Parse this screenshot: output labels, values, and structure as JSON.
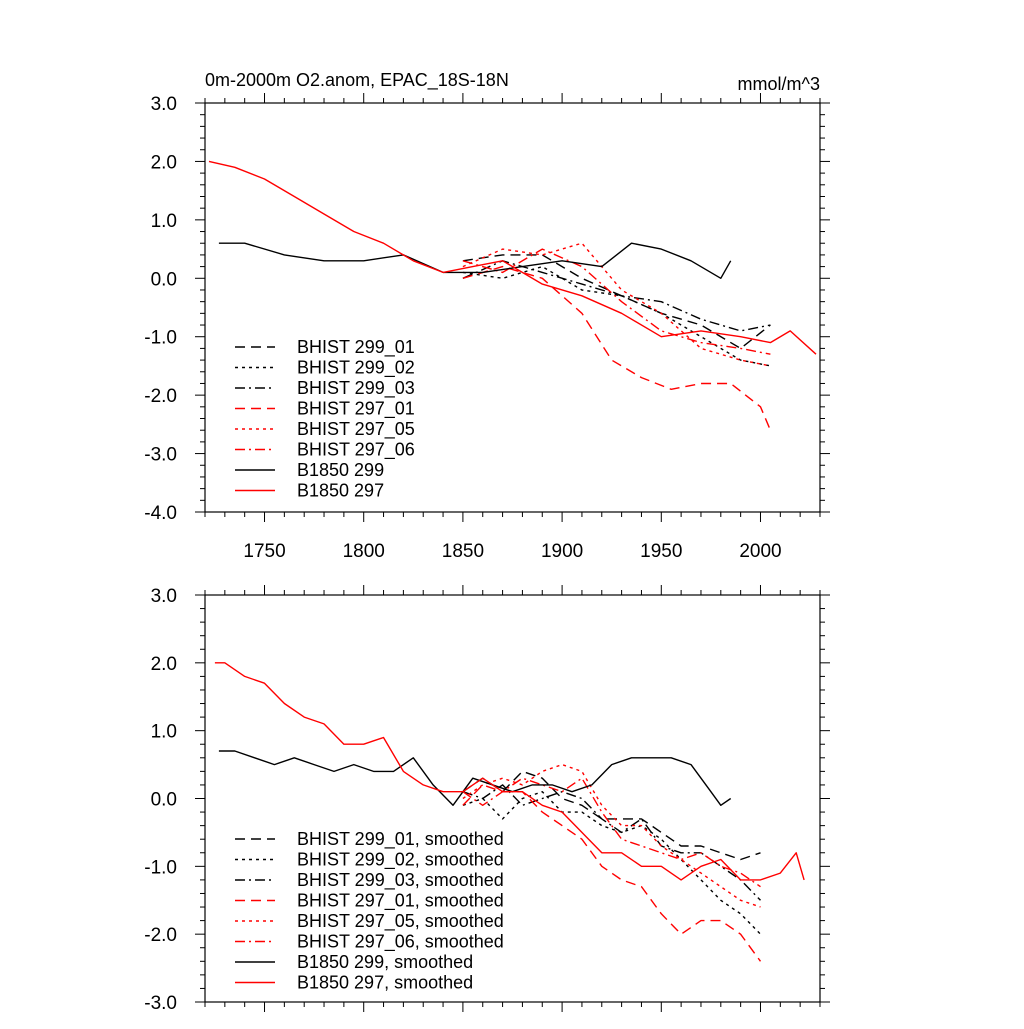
{
  "chart_data": [
    {
      "type": "line",
      "title": "0m-2000m O2.anom, EPAC_18S-18N",
      "units": "mmol/m^3",
      "xlim": [
        1720,
        2030
      ],
      "ylim": [
        -4.0,
        3.0
      ],
      "xticks": [
        1750,
        1800,
        1850,
        1900,
        1950,
        2000
      ],
      "xtick_labels": [
        "1750",
        "1800",
        "1850",
        "1900",
        "1950",
        "2000"
      ],
      "yticks": [
        3.0,
        2.0,
        1.0,
        0.0,
        -1.0,
        -2.0,
        -3.0,
        -4.0
      ],
      "ytick_labels": [
        "3.0",
        "2.0",
        "1.0",
        "0.0",
        "-1.0",
        "-2.0",
        "-3.0",
        "-4.0"
      ],
      "legend_position": "bottom-left",
      "series": [
        {
          "name": "BHIST 299_01",
          "color": "#000000",
          "dash": "dashed",
          "x": [
            1850,
            1870,
            1890,
            1910,
            1930,
            1950,
            1970,
            1990,
            2005
          ],
          "y": [
            0.3,
            0.4,
            0.4,
            0.0,
            -0.3,
            -0.6,
            -0.8,
            -1.2,
            -0.8
          ]
        },
        {
          "name": "BHIST 299_02",
          "color": "#000000",
          "dash": "dotted",
          "x": [
            1850,
            1870,
            1890,
            1910,
            1930,
            1950,
            1970,
            1990,
            2005
          ],
          "y": [
            0.1,
            0.0,
            0.2,
            -0.2,
            -0.3,
            -0.6,
            -1.0,
            -1.4,
            -1.5
          ]
        },
        {
          "name": "BHIST 299_03",
          "color": "#000000",
          "dash": "dashdot",
          "x": [
            1850,
            1870,
            1890,
            1910,
            1930,
            1950,
            1970,
            1990,
            2005
          ],
          "y": [
            0.0,
            0.3,
            0.1,
            -0.1,
            -0.3,
            -0.4,
            -0.7,
            -0.9,
            -0.8
          ]
        },
        {
          "name": "BHIST 297_01",
          "color": "#ff0000",
          "dash": "dashed",
          "x": [
            1850,
            1870,
            1890,
            1910,
            1925,
            1940,
            1955,
            1970,
            1985,
            2000,
            2005
          ],
          "y": [
            0.0,
            0.2,
            0.0,
            -0.6,
            -1.4,
            -1.7,
            -1.9,
            -1.8,
            -1.8,
            -2.2,
            -2.6
          ]
        },
        {
          "name": "BHIST 297_05",
          "color": "#ff0000",
          "dash": "dotted",
          "x": [
            1850,
            1870,
            1890,
            1910,
            1930,
            1950,
            1970,
            1990,
            2005
          ],
          "y": [
            0.2,
            0.5,
            0.4,
            0.6,
            -0.2,
            -0.6,
            -1.2,
            -1.4,
            -1.5
          ]
        },
        {
          "name": "BHIST 297_06",
          "color": "#ff0000",
          "dash": "dashdot",
          "x": [
            1850,
            1870,
            1890,
            1910,
            1930,
            1950,
            1970,
            1990,
            2005
          ],
          "y": [
            0.3,
            0.1,
            0.5,
            0.2,
            -0.4,
            -0.9,
            -1.1,
            -1.2,
            -1.3
          ]
        },
        {
          "name": "B1850 299",
          "color": "#000000",
          "dash": "solid",
          "x": [
            1727,
            1740,
            1760,
            1780,
            1800,
            1820,
            1840,
            1860,
            1880,
            1900,
            1920,
            1935,
            1950,
            1965,
            1980,
            1985
          ],
          "y": [
            0.6,
            0.6,
            0.4,
            0.3,
            0.3,
            0.4,
            0.1,
            0.1,
            0.2,
            0.3,
            0.2,
            0.6,
            0.5,
            0.3,
            0.0,
            0.3
          ]
        },
        {
          "name": "B1850 297",
          "color": "#ff0000",
          "dash": "solid",
          "x": [
            1722,
            1735,
            1750,
            1765,
            1780,
            1795,
            1810,
            1825,
            1840,
            1855,
            1870,
            1890,
            1910,
            1930,
            1950,
            1970,
            1990,
            2005,
            2015,
            2028
          ],
          "y": [
            2.0,
            1.9,
            1.7,
            1.4,
            1.1,
            0.8,
            0.6,
            0.3,
            0.1,
            0.2,
            0.3,
            -0.1,
            -0.3,
            -0.6,
            -1.0,
            -0.9,
            -1.0,
            -1.1,
            -0.9,
            -1.3
          ]
        }
      ]
    },
    {
      "type": "line",
      "title": "",
      "xlim": [
        1720,
        2030
      ],
      "ylim": [
        -3.0,
        3.0
      ],
      "xticks": [
        1750,
        1800,
        1850,
        1900,
        1950,
        2000
      ],
      "yticks": [
        3.0,
        2.0,
        1.0,
        0.0,
        -1.0,
        -2.0,
        -3.0
      ],
      "ytick_labels": [
        "3.0",
        "2.0",
        "1.0",
        "0.0",
        "-1.0",
        "-2.0",
        "-3.0"
      ],
      "legend_position": "bottom-left",
      "series": [
        {
          "name": "BHIST 299_01, smoothed",
          "color": "#000000",
          "dash": "dashed",
          "x": [
            1850,
            1860,
            1870,
            1880,
            1890,
            1900,
            1910,
            1920,
            1930,
            1940,
            1950,
            1960,
            1970,
            1980,
            1990,
            2000
          ],
          "y": [
            0.1,
            0.3,
            0.1,
            0.4,
            0.3,
            0.0,
            -0.1,
            -0.3,
            -0.3,
            -0.3,
            -0.5,
            -0.7,
            -0.7,
            -0.8,
            -0.9,
            -0.8
          ]
        },
        {
          "name": "BHIST 299_02, smoothed",
          "color": "#000000",
          "dash": "dotted",
          "x": [
            1850,
            1860,
            1870,
            1880,
            1890,
            1900,
            1910,
            1920,
            1930,
            1940,
            1950,
            1960,
            1970,
            1980,
            1990,
            2000
          ],
          "y": [
            -0.1,
            0.0,
            -0.3,
            0.0,
            0.1,
            -0.2,
            -0.2,
            -0.4,
            -0.5,
            -0.4,
            -0.6,
            -0.9,
            -1.2,
            -1.5,
            -1.7,
            -2.0
          ]
        },
        {
          "name": "BHIST 299_03, smoothed",
          "color": "#000000",
          "dash": "dashdot",
          "x": [
            1850,
            1860,
            1870,
            1880,
            1890,
            1900,
            1910,
            1920,
            1930,
            1940,
            1950,
            1960,
            1970,
            1980,
            1990,
            2000
          ],
          "y": [
            0.1,
            0.0,
            0.2,
            -0.1,
            0.0,
            0.1,
            0.0,
            -0.3,
            -0.5,
            -0.3,
            -0.7,
            -0.8,
            -0.8,
            -1.0,
            -1.2,
            -1.5
          ]
        },
        {
          "name": "BHIST 297_01, smoothed",
          "color": "#ff0000",
          "dash": "dashed",
          "x": [
            1850,
            1860,
            1870,
            1880,
            1890,
            1900,
            1910,
            1920,
            1930,
            1940,
            1950,
            1960,
            1970,
            1980,
            1990,
            2000
          ],
          "y": [
            -0.1,
            0.2,
            0.1,
            0.1,
            -0.2,
            -0.4,
            -0.6,
            -1.0,
            -1.2,
            -1.3,
            -1.7,
            -2.0,
            -1.8,
            -1.8,
            -2.0,
            -2.4
          ]
        },
        {
          "name": "BHIST 297_05, smoothed",
          "color": "#ff0000",
          "dash": "dotted",
          "x": [
            1850,
            1860,
            1870,
            1880,
            1890,
            1900,
            1910,
            1920,
            1930,
            1940,
            1950,
            1960,
            1970,
            1980,
            1990,
            2000
          ],
          "y": [
            0.0,
            0.2,
            0.3,
            0.2,
            0.4,
            0.5,
            0.4,
            -0.1,
            -0.4,
            -0.4,
            -0.7,
            -0.9,
            -1.1,
            -1.3,
            -1.5,
            -1.6
          ]
        },
        {
          "name": "BHIST 297_06, smoothed",
          "color": "#ff0000",
          "dash": "dashdot",
          "x": [
            1850,
            1860,
            1870,
            1880,
            1890,
            1900,
            1910,
            1920,
            1930,
            1940,
            1950,
            1960,
            1970,
            1980,
            1990,
            2000
          ],
          "y": [
            0.1,
            -0.1,
            0.1,
            0.3,
            0.2,
            0.1,
            0.3,
            -0.2,
            -0.6,
            -0.7,
            -0.8,
            -0.9,
            -0.8,
            -1.0,
            -1.1,
            -1.3
          ]
        },
        {
          "name": "B1850 299, smoothed",
          "color": "#000000",
          "dash": "solid",
          "x": [
            1727,
            1735,
            1745,
            1755,
            1765,
            1775,
            1785,
            1795,
            1805,
            1815,
            1825,
            1835,
            1845,
            1855,
            1865,
            1875,
            1885,
            1895,
            1905,
            1915,
            1925,
            1935,
            1945,
            1955,
            1965,
            1975,
            1980,
            1985
          ],
          "y": [
            0.7,
            0.7,
            0.6,
            0.5,
            0.6,
            0.5,
            0.4,
            0.5,
            0.4,
            0.4,
            0.6,
            0.2,
            -0.1,
            0.3,
            0.2,
            0.1,
            0.2,
            0.2,
            0.1,
            0.2,
            0.5,
            0.6,
            0.6,
            0.6,
            0.5,
            0.1,
            -0.1,
            0.0
          ]
        },
        {
          "name": "B1850 297, smoothed",
          "color": "#ff0000",
          "dash": "solid",
          "x": [
            1725,
            1730,
            1740,
            1750,
            1760,
            1770,
            1780,
            1790,
            1800,
            1810,
            1820,
            1830,
            1840,
            1850,
            1860,
            1870,
            1880,
            1890,
            1900,
            1910,
            1920,
            1930,
            1940,
            1950,
            1960,
            1970,
            1980,
            1990,
            2000,
            2010,
            2018,
            2022
          ],
          "y": [
            2.0,
            2.0,
            1.8,
            1.7,
            1.4,
            1.2,
            1.1,
            0.8,
            0.8,
            0.9,
            0.4,
            0.2,
            0.1,
            0.1,
            0.3,
            0.1,
            0.1,
            -0.1,
            -0.2,
            -0.5,
            -0.8,
            -0.8,
            -1.0,
            -1.0,
            -1.2,
            -1.0,
            -0.9,
            -1.2,
            -1.2,
            -1.1,
            -0.8,
            -1.2
          ]
        }
      ]
    }
  ]
}
